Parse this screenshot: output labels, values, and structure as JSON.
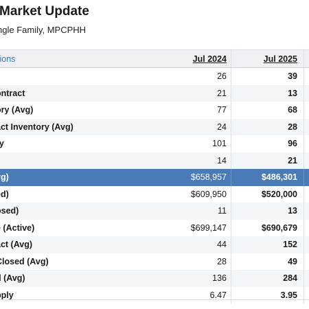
{
  "report": {
    "title": "Market Update",
    "subtitle": "ngle Family, MPCPHH"
  },
  "table": {
    "header": {
      "label": "tions",
      "col1": "Jul 2024",
      "col2": "Jul 2025"
    },
    "rows": [
      {
        "label": "",
        "col1": "26",
        "col2": "39"
      },
      {
        "label": "ontract",
        "col1": "21",
        "col2": "13"
      },
      {
        "label": "ory (Avg)",
        "col1": "77",
        "col2": "68"
      },
      {
        "label": "act Inventory (Avg)",
        "col1": "24",
        "col2": "28"
      },
      {
        "label": "ry",
        "col1": "101",
        "col2": "96"
      },
      {
        "label": "",
        "col1": "14",
        "col2": "21"
      },
      {
        "label": "vg)",
        "col1": "$658,957",
        "col2": "$486,301"
      },
      {
        "label": "ed)",
        "col1": "$609,950",
        "col2": "$520,000"
      },
      {
        "label": "osed)",
        "col1": "11",
        "col2": "13"
      },
      {
        "label": "e (Active)",
        "col1": "$699,147",
        "col2": "$690,679"
      },
      {
        "label": "act (Avg)",
        "col1": "44",
        "col2": "152"
      },
      {
        "label": "Closed (Avg)",
        "col1": "28",
        "col2": "49"
      },
      {
        "label": "d (Avg)",
        "col1": "136",
        "col2": "284"
      },
      {
        "label": "pply",
        "col1": "6.47",
        "col2": "3.95"
      }
    ]
  },
  "colors": {
    "highlight_row": "#4a7bb7",
    "header_link": "#3b76b5",
    "alt_row": "#f3f6f9"
  }
}
